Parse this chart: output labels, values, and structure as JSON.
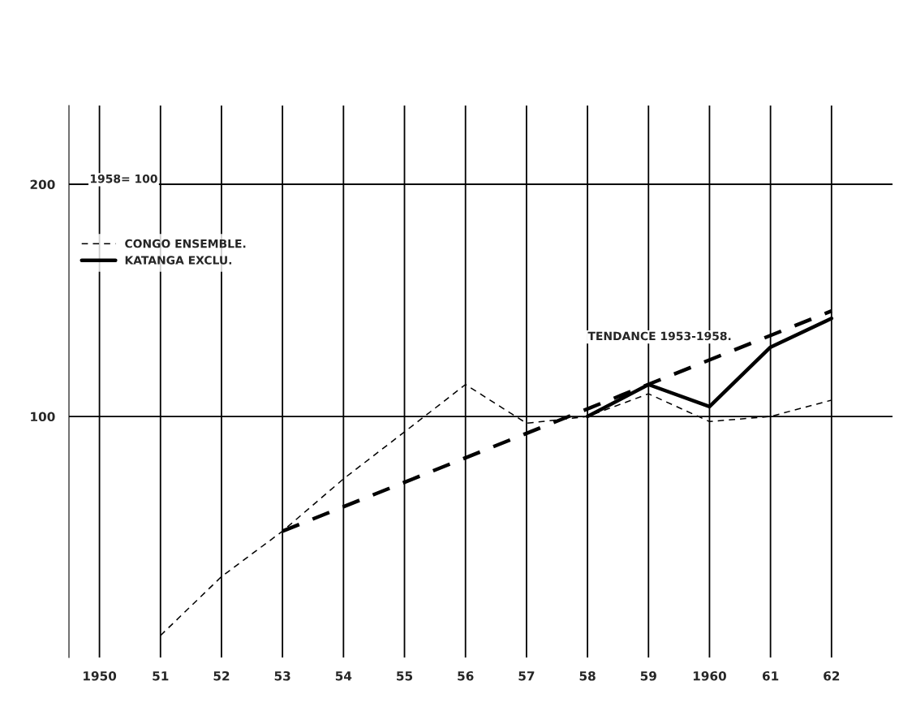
{
  "chart_data": {
    "type": "line",
    "x": [
      1951,
      1952,
      1953,
      1954,
      1955,
      1956,
      1957,
      1958,
      1959,
      1960,
      1961,
      1962
    ],
    "series": [
      {
        "name": "CONGO ENSEMBLE.",
        "color": "#000000",
        "line_style": "dashed",
        "values": [
          52,
          62,
          71,
          83,
          95.5,
          110,
          98,
          100,
          107,
          98.5,
          100,
          105
        ]
      },
      {
        "name": "KATANGA EXCLU.",
        "color": "#000000",
        "line_style": "solid",
        "x": [
          1958,
          1959,
          1960,
          1961,
          1962
        ],
        "values": [
          100,
          110,
          103,
          123,
          134
        ]
      },
      {
        "color": "#000000",
        "line_style": "dashed",
        "x": [
          1953,
          1962
        ],
        "values": [
          71,
          137
        ]
      }
    ],
    "log": true,
    "xlim": [
      1949.5,
      1963
    ],
    "ylim": [
      48.7,
      253
    ],
    "xticks": [
      1950,
      {
        "value": 1951,
        "label": "51"
      },
      {
        "value": 1952,
        "label": "52"
      },
      {
        "value": 1953,
        "label": "53"
      },
      {
        "value": 1954,
        "label": "54"
      },
      {
        "value": 1955,
        "label": "55"
      },
      {
        "value": 1956,
        "label": "56"
      },
      {
        "value": 1957,
        "label": "57"
      },
      {
        "value": 1958,
        "label": "58"
      },
      {
        "value": 1959,
        "label": "59"
      },
      1960,
      {
        "value": 1961,
        "label": "61"
      },
      {
        "value": 1962,
        "label": "62"
      }
    ],
    "yticks": [
      100,
      200
    ],
    "grid": true,
    "legend": "top left",
    "annotations": [
      "1958= 100",
      "TENDANCE 1953-1958."
    ]
  }
}
